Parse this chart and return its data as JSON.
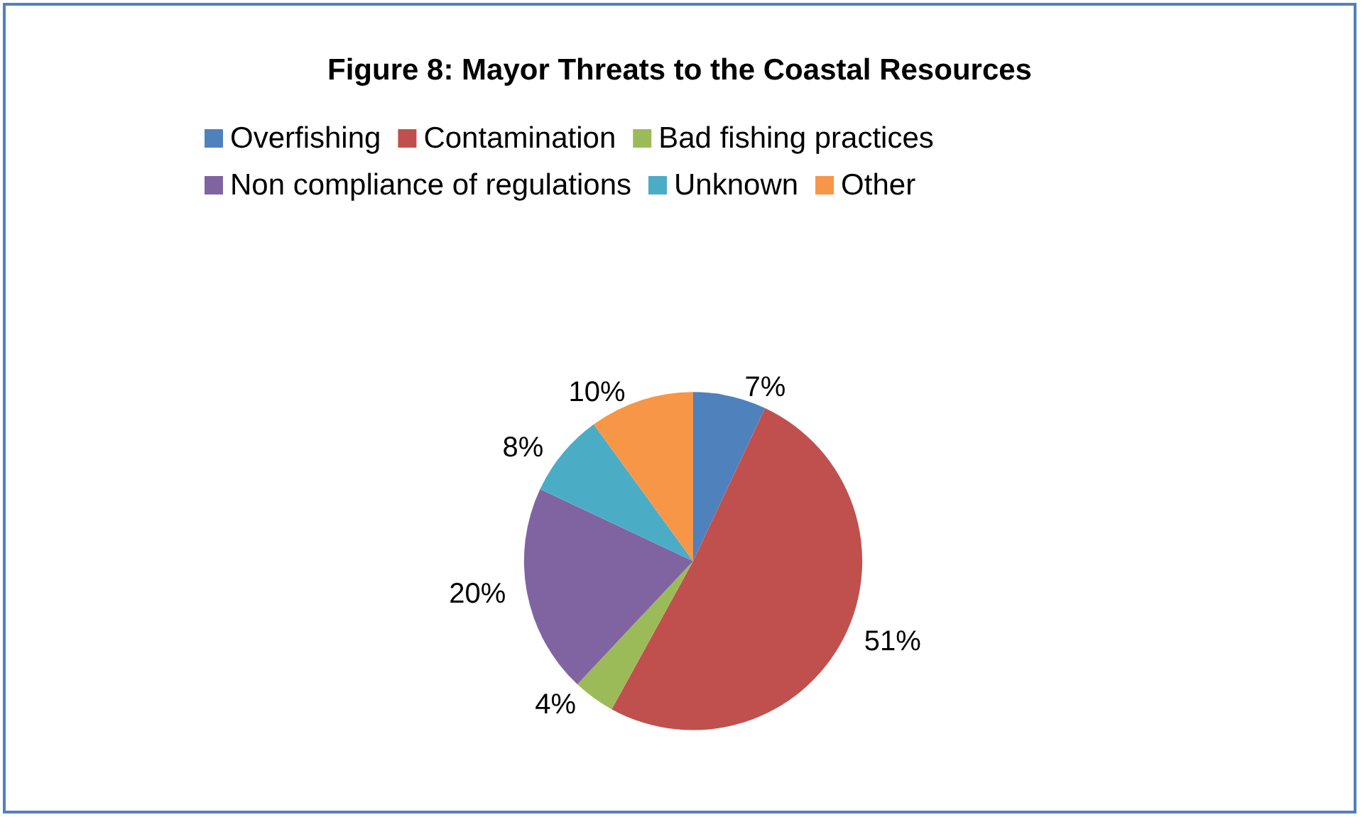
{
  "chart_data": {
    "type": "pie",
    "title": "Figure 8: Mayor Threats to the Coastal Resources",
    "categories": [
      "Overfishing",
      "Contamination",
      "Bad fishing practices",
      "Non compliance of regulations",
      "Unknown",
      "Other"
    ],
    "values": [
      7,
      51,
      4,
      20,
      8,
      10
    ],
    "value_labels": [
      "7%",
      "51%",
      "4%",
      "20%",
      "8%",
      "10%"
    ],
    "colors": [
      "#4f81bd",
      "#c0504d",
      "#9bbb59",
      "#8064a2",
      "#4bacc6",
      "#f79646"
    ],
    "legend": "top"
  }
}
